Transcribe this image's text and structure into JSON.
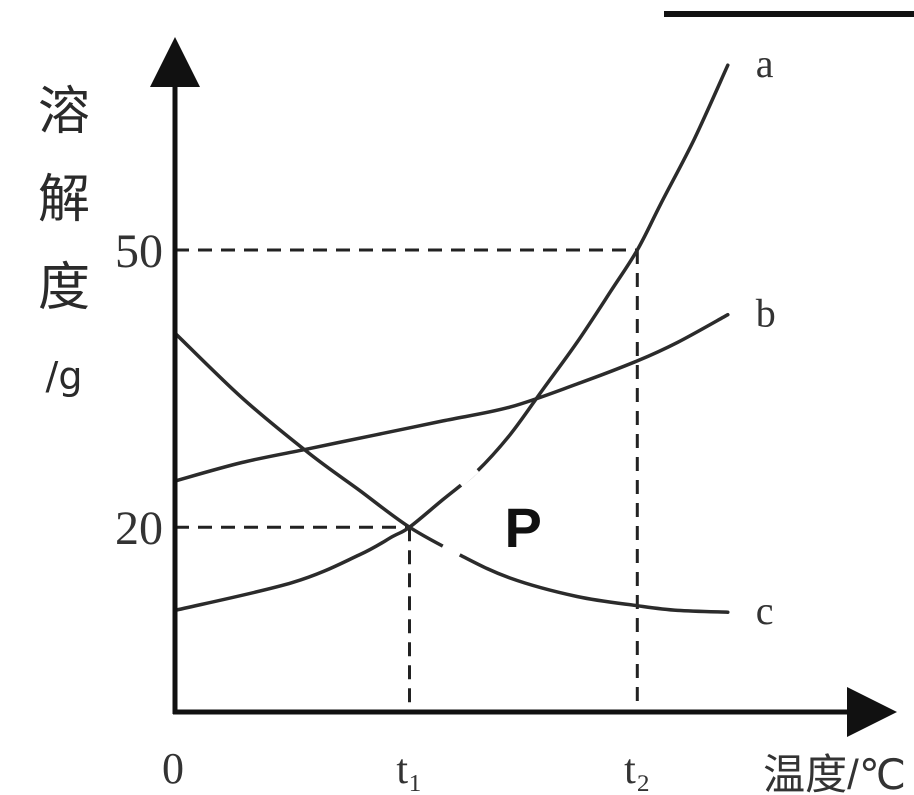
{
  "chart_data": {
    "type": "line",
    "title": "",
    "ylabel_chars": [
      "溶",
      "解",
      "度",
      "/g"
    ],
    "xlabel": "温度/℃",
    "origin_label": "0",
    "y_ticks": [
      {
        "label": "50",
        "value": 50
      },
      {
        "label": "20",
        "value": 20
      }
    ],
    "x_ticks": [
      {
        "label": "t₁",
        "key": "t1"
      },
      {
        "label": "t₂",
        "key": "t2"
      }
    ],
    "ylim": [
      0,
      70
    ],
    "grid": false,
    "series": [
      {
        "name": "a",
        "points": [
          [
            0,
            11
          ],
          [
            0.35,
            14
          ],
          [
            0.55,
            17
          ],
          [
            0.65,
            19
          ],
          [
            0.7,
            20
          ],
          [
            0.8,
            23
          ],
          [
            0.9,
            26
          ],
          [
            1.0,
            30
          ],
          [
            1.1,
            35
          ],
          [
            1.2,
            40
          ],
          [
            1.3,
            45.5
          ],
          [
            1.38,
            50
          ],
          [
            1.45,
            55
          ],
          [
            1.55,
            62
          ],
          [
            1.65,
            70
          ]
        ]
      },
      {
        "name": "b",
        "points": [
          [
            0,
            25
          ],
          [
            0.2,
            27
          ],
          [
            0.4,
            28.5
          ],
          [
            0.6,
            30
          ],
          [
            0.8,
            31.5
          ],
          [
            1.0,
            33
          ],
          [
            1.2,
            35.5
          ],
          [
            1.38,
            38
          ],
          [
            1.5,
            40
          ],
          [
            1.65,
            43
          ]
        ]
      },
      {
        "name": "c",
        "points": [
          [
            0,
            41
          ],
          [
            0.2,
            34
          ],
          [
            0.4,
            28
          ],
          [
            0.55,
            24
          ],
          [
            0.7,
            20
          ],
          [
            0.85,
            17
          ],
          [
            1.0,
            14.5
          ],
          [
            1.2,
            12.5
          ],
          [
            1.38,
            11.5
          ],
          [
            1.5,
            11
          ],
          [
            1.65,
            10.8
          ]
        ]
      }
    ],
    "annotations": {
      "intersection_label": "P",
      "intersection": {
        "x_key": "t1",
        "x": 0.7,
        "y": 20
      },
      "guide": {
        "x_key": "t2",
        "x": 1.38,
        "y": 50
      }
    }
  }
}
